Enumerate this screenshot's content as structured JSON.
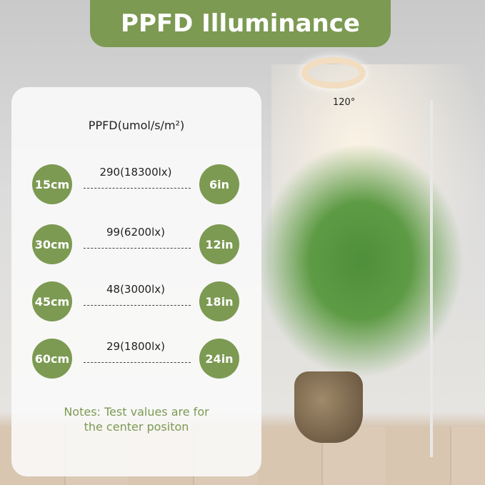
{
  "title": "PPFD Illuminance",
  "unit_label": "PPFD(umol/s/m²)",
  "rows": [
    {
      "cm": "15cm",
      "value": "290(18300lx)",
      "inch": "6in"
    },
    {
      "cm": "30cm",
      "value": "99(6200lx)",
      "inch": "12in"
    },
    {
      "cm": "45cm",
      "value": "48(3000lx)",
      "inch": "18in"
    },
    {
      "cm": "60cm",
      "value": "29(1800lx)",
      "inch": "24in"
    }
  ],
  "notes": [
    "Notes: Test values are for",
    "the center positon"
  ],
  "angle": "120°",
  "colors": {
    "accent": "#7c9a52"
  }
}
